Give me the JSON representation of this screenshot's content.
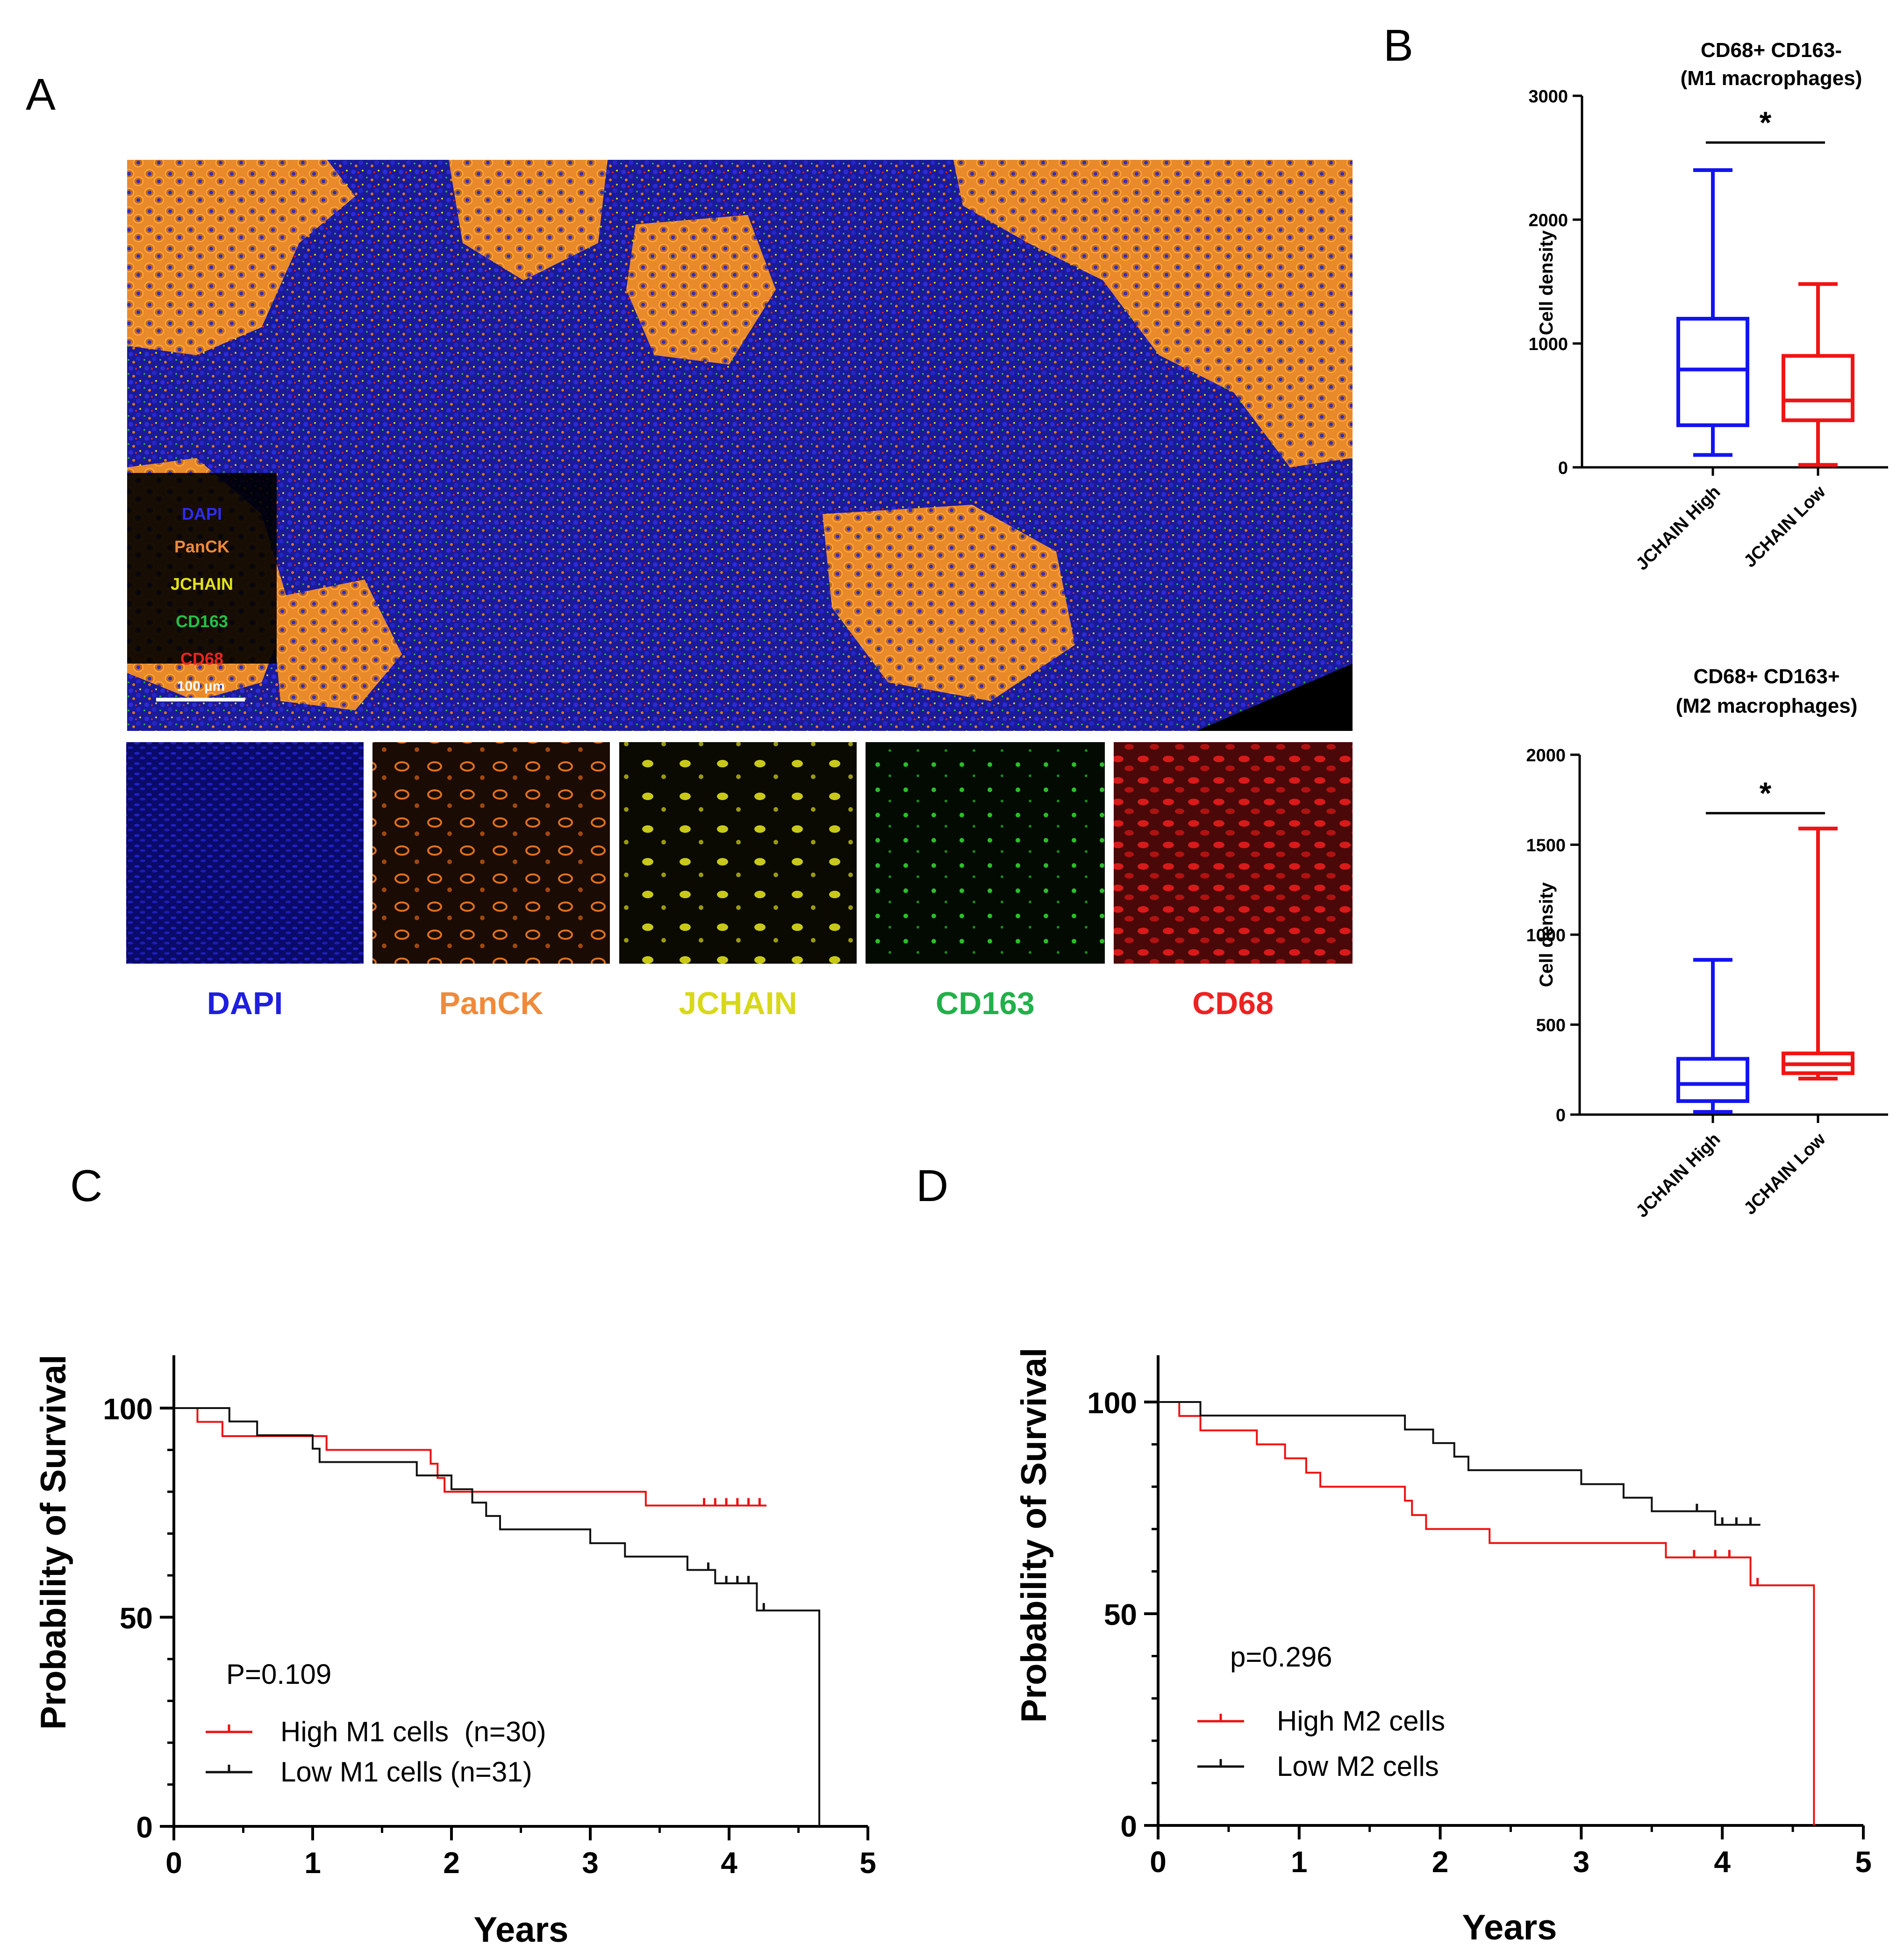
{
  "panel_labels": {
    "a": "A",
    "b": "B",
    "c": "C",
    "d": "D"
  },
  "micrograph": {
    "legend_markers": [
      "DAPI",
      "PanCK",
      "JCHAIN",
      "CD163",
      "CD68"
    ],
    "scale_bar_label": "100 µm",
    "channels": [
      {
        "label": "DAPI",
        "color": "#1f1fe0"
      },
      {
        "label": "PanCK",
        "color": "#f08a3a"
      },
      {
        "label": "JCHAIN",
        "color": "#d8d81a"
      },
      {
        "label": "CD163",
        "color": "#22b04a"
      },
      {
        "label": "CD68",
        "color": "#ee2222"
      }
    ]
  },
  "chart_data": [
    {
      "id": "B1",
      "type": "box",
      "title": "CD68+ CD163-",
      "subtitle": "(M1 macrophages)",
      "xlabel": "",
      "ylabel": "Cell density",
      "ylim": [
        0,
        3000
      ],
      "yticks": [
        0,
        1000,
        2000,
        3000
      ],
      "categories": [
        "JCHAIN High",
        "JCHAIN Low"
      ],
      "boxes": [
        {
          "min": 100,
          "q1": 340,
          "median": 790,
          "q3": 1200,
          "max": 2400,
          "color": "#1414f0"
        },
        {
          "min": 20,
          "q1": 380,
          "median": 540,
          "q3": 900,
          "max": 1480,
          "color": "#f01414"
        }
      ],
      "significance": "*"
    },
    {
      "id": "B2",
      "type": "box",
      "title": "CD68+ CD163+",
      "subtitle": "(M2 macrophages)",
      "xlabel": "",
      "ylabel": "Cell density",
      "ylim": [
        0,
        2000
      ],
      "yticks": [
        0,
        500,
        1000,
        1500,
        2000
      ],
      "categories": [
        "JCHAIN High",
        "JCHAIN Low"
      ],
      "boxes": [
        {
          "min": 15,
          "q1": 75,
          "median": 170,
          "q3": 310,
          "max": 860,
          "color": "#1414f0"
        },
        {
          "min": 200,
          "q1": 230,
          "median": 280,
          "q3": 340,
          "max": 1590,
          "color": "#f01414"
        }
      ],
      "significance": "*"
    },
    {
      "id": "C",
      "type": "line",
      "xlabel": "Years",
      "ylabel": "Probability of Survival",
      "xlim": [
        0,
        5
      ],
      "ylim": [
        0,
        100
      ],
      "xticks": [
        0,
        1,
        2,
        3,
        4,
        5
      ],
      "yticks": [
        0,
        50,
        100
      ],
      "annotation": "P=0.109",
      "series": [
        {
          "name": "High M1 cells  (n=30)",
          "color": "#ee1111",
          "steps": [
            [
              0,
              100
            ],
            [
              0.17,
              96.7
            ],
            [
              0.35,
              93.3
            ],
            [
              1.1,
              90
            ],
            [
              1.85,
              86.7
            ],
            [
              1.9,
              83.3
            ],
            [
              1.95,
              80
            ],
            [
              3.4,
              76.7
            ],
            [
              4.27,
              76.7
            ]
          ],
          "censor": [
            3.82,
            3.9,
            3.98,
            4.06,
            4.14,
            4.22
          ]
        },
        {
          "name": "Low M1 cells (n=31)",
          "color": "#111111",
          "steps": [
            [
              0,
              100
            ],
            [
              0.4,
              96.8
            ],
            [
              0.6,
              93.5
            ],
            [
              1.0,
              90.3
            ],
            [
              1.05,
              87.1
            ],
            [
              1.75,
              83.9
            ],
            [
              2.0,
              80.6
            ],
            [
              2.15,
              77.4
            ],
            [
              2.25,
              74.2
            ],
            [
              2.35,
              71
            ],
            [
              3.0,
              67.7
            ],
            [
              3.25,
              64.5
            ],
            [
              3.7,
              61.3
            ],
            [
              3.9,
              58.1
            ],
            [
              4.2,
              51.6
            ],
            [
              4.65,
              50
            ],
            [
              4.65,
              0
            ]
          ],
          "censor": [
            3.85,
            3.98,
            4.06,
            4.14,
            4.25
          ]
        }
      ]
    },
    {
      "id": "D",
      "type": "line",
      "xlabel": "Years",
      "ylabel": "Probability of Survival",
      "xlim": [
        0,
        5
      ],
      "ylim": [
        0,
        100
      ],
      "xticks": [
        0,
        1,
        2,
        3,
        4,
        5
      ],
      "yticks": [
        0,
        50,
        100
      ],
      "annotation": "p=0.296",
      "series": [
        {
          "name": "High M2 cells",
          "color": "#ee1111",
          "steps": [
            [
              0,
              100
            ],
            [
              0.15,
              96.7
            ],
            [
              0.3,
              93.3
            ],
            [
              0.7,
              90
            ],
            [
              0.9,
              86.7
            ],
            [
              1.05,
              83.3
            ],
            [
              1.15,
              80
            ],
            [
              1.75,
              76.7
            ],
            [
              1.8,
              73.3
            ],
            [
              1.9,
              70
            ],
            [
              2.35,
              66.7
            ],
            [
              3.6,
              63.3
            ],
            [
              4.2,
              56.7
            ],
            [
              4.65,
              56.7
            ],
            [
              4.65,
              0
            ]
          ],
          "censor": [
            3.8,
            3.95,
            4.05,
            4.25
          ]
        },
        {
          "name": "Low M2 cells",
          "color": "#111111",
          "steps": [
            [
              0,
              100
            ],
            [
              0.3,
              96.8
            ],
            [
              1.75,
              93.5
            ],
            [
              1.95,
              90.3
            ],
            [
              2.1,
              87.1
            ],
            [
              2.2,
              83.9
            ],
            [
              3.0,
              80.6
            ],
            [
              3.3,
              77.4
            ],
            [
              3.5,
              74.2
            ],
            [
              3.95,
              71
            ],
            [
              4.27,
              71
            ]
          ],
          "censor": [
            3.82,
            4.0,
            4.1,
            4.2
          ]
        }
      ]
    }
  ]
}
